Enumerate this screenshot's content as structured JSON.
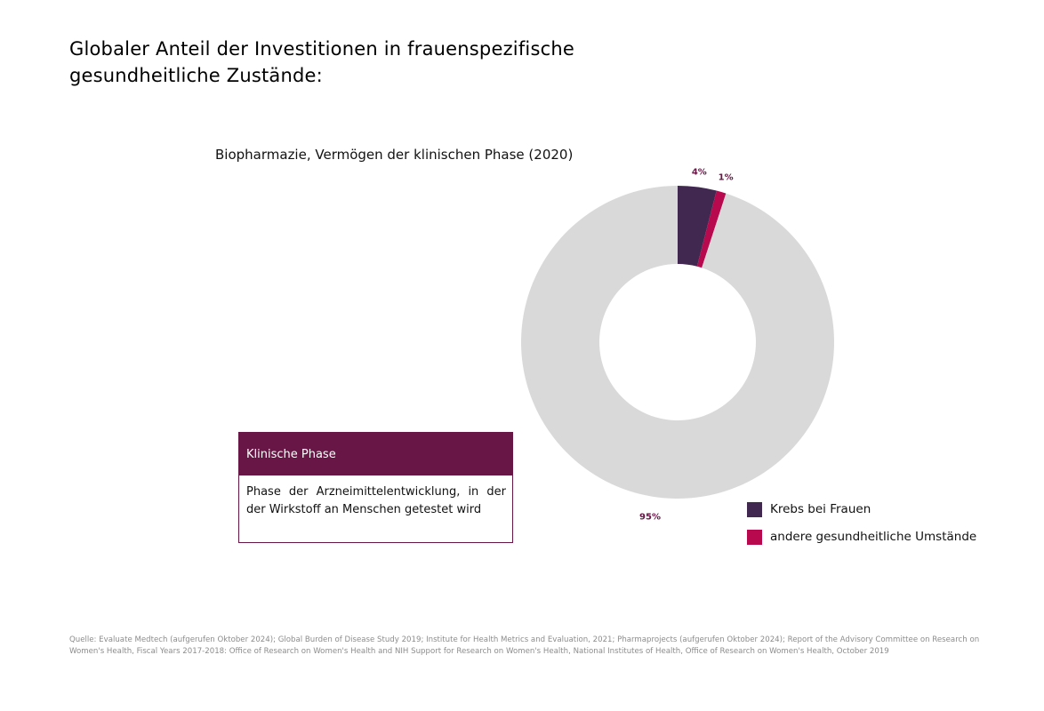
{
  "title": "Globaler Anteil der Investitionen in frauenspezifische gesundheitliche Zustände:",
  "chart_subtitle": "Biopharmazie, Vermögen der klinischen Phase (2020)",
  "info_box": {
    "heading": "Klinische Phase",
    "text": "Phase der Arzneimittelentwicklung, in der der Wirkstoff an Menschen getestet wird"
  },
  "source": "Quelle: Evaluate Medtech (aufgerufen Oktober 2024); Global Burden of Disease Study 2019; Institute for Health Metrics and Evaluation, 2021; Pharmaprojects (aufgerufen Oktober 2024); Report of the Advisory Committee on Research on Women's Health, Fiscal Years 2017-2018: Office of Research on Women's Health and NIH Support for Research on Women's Health, National Institutes of Health, Office of Research on Women's Health, October 2019",
  "colors": {
    "accent": "#671645",
    "label": "#671645"
  },
  "chart_data": {
    "type": "pie",
    "donut": true,
    "title": "Biopharmazie, Vermögen der klinischen Phase (2020)",
    "legend_position": "bottom-right",
    "slices": [
      {
        "name": "Krebs bei Frauen",
        "value": 4,
        "label": "4%",
        "color": "#412850",
        "in_legend": true
      },
      {
        "name": "andere gesundheitliche Umstände",
        "value": 1,
        "label": "1%",
        "color": "#b8094e",
        "in_legend": true
      },
      {
        "name": "",
        "value": 95,
        "label": "95%",
        "color": "#d9d9d9",
        "in_legend": false
      }
    ]
  }
}
